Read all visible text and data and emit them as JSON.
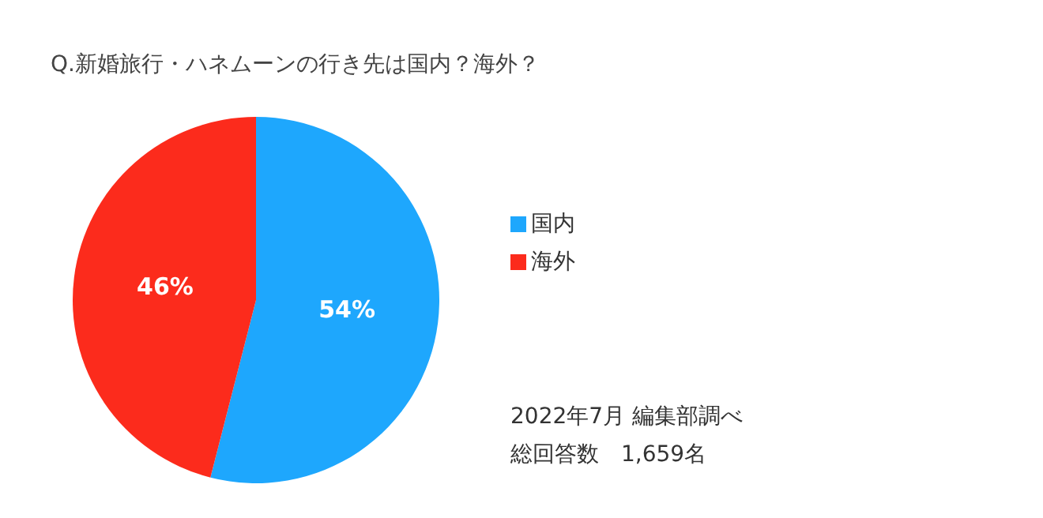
{
  "chart_data": {
    "type": "pie",
    "title": "Q.新婚旅行・ハネムーンの行き先は国内？海外？",
    "categories": [
      "国内",
      "海外"
    ],
    "values": [
      54,
      46
    ],
    "colors": [
      "#1ea7fd",
      "#fc2b1c"
    ],
    "legend": "right",
    "value_labels": [
      "54%",
      "46%"
    ],
    "annotations": [
      "2022年7月 編集部調べ",
      "総回答数　1,659名"
    ]
  }
}
